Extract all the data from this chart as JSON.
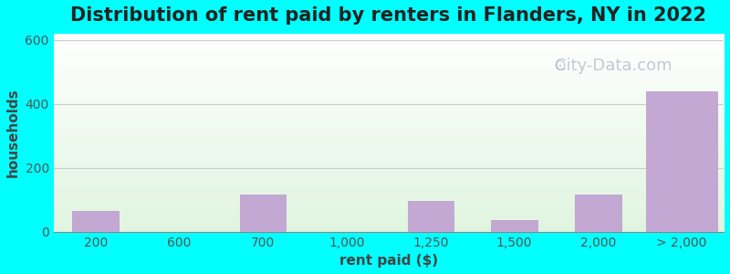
{
  "title": "Distribution of rent paid by renters in Flanders, NY in 2022",
  "xlabel": "rent paid ($)",
  "ylabel": "households",
  "background_color": "#00FFFF",
  "bar_color": "#C4A8D4",
  "bar_edge_color": "#b898c8",
  "grid_color": "#cccccc",
  "yticks": [
    0,
    200,
    400,
    600
  ],
  "ylim": [
    0,
    620
  ],
  "categories": [
    "200",
    "600",
    "700",
    "1,000",
    "1,250",
    "1,500",
    "2,000",
    "> 2,000"
  ],
  "values": [
    65,
    0,
    115,
    0,
    95,
    35,
    115,
    440
  ],
  "title_fontsize": 15,
  "axis_label_fontsize": 11,
  "tick_fontsize": 10,
  "watermark_text": "City-Data.com",
  "watermark_color": "#b0b8c8",
  "watermark_fontsize": 13
}
